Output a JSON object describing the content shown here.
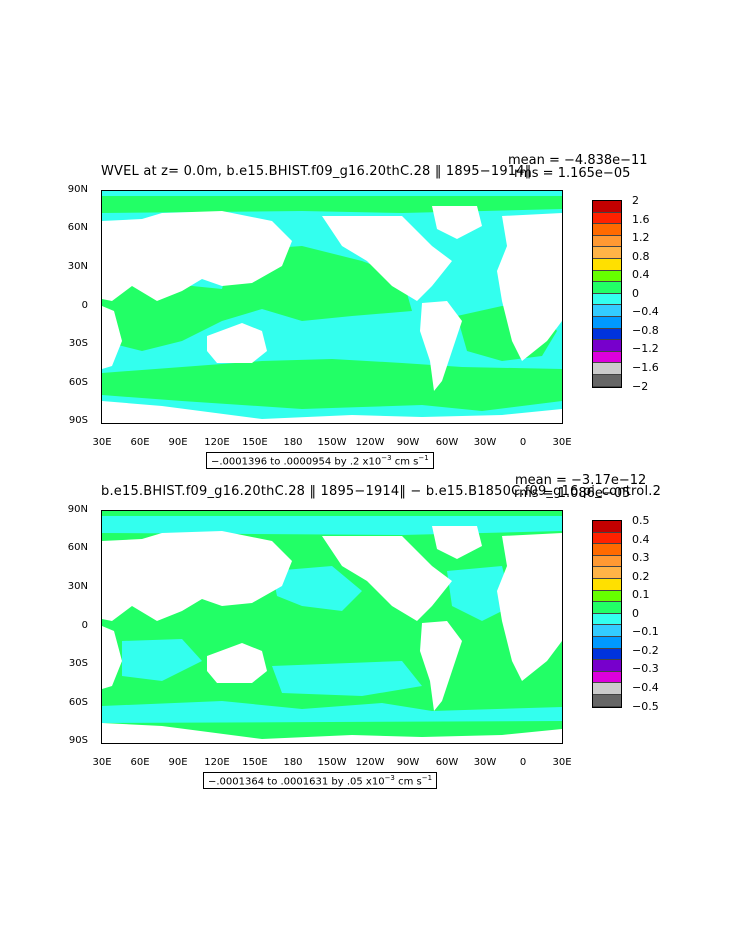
{
  "colors": {
    "land": "#ffffff",
    "green": "#22ff66",
    "cyan": "#33ffee"
  },
  "panel1": {
    "title_left": "WVEL at z=    0.0m, b.e15.BHIST.f09_g16.20thC.28 ‖ 1895−1914‖",
    "mean": "mean = −4.838e−11",
    "rms": "rms = 1.165e−05",
    "range_text": "−.0001396 to .0000954 by .2 x10",
    "range_exp": "−3",
    "range_unit": " cm s",
    "range_unit_exp": "−1",
    "colorbar": {
      "colors": [
        "#c40000",
        "#ff2200",
        "#ff6a00",
        "#ff9933",
        "#ffb347",
        "#ffe000",
        "#66ff00",
        "#22ff66",
        "#33ffee",
        "#33ccff",
        "#0099ff",
        "#0033dd",
        "#7700cc",
        "#dd00dd",
        "#cccccc",
        "#666666"
      ],
      "labels": [
        "2",
        "1.6",
        "1.2",
        "0.8",
        "0.4",
        "0",
        "−0.4",
        "−0.8",
        "−1.2",
        "−1.6",
        "−2"
      ]
    }
  },
  "panel2": {
    "title_left": "b.e15.BHIST.f09_g16.20thC.28 ‖ 1895−1914‖ − b.e15.B1850C.f09_g16.pi_control.2",
    "mean": "mean = −3.17e−12",
    "rms": "rms = 1.086e−05",
    "range_text": "−.0001364 to .0001631 by .05 x10",
    "range_exp": "−3",
    "range_unit": " cm s",
    "range_unit_exp": "−1",
    "colorbar": {
      "colors": [
        "#c40000",
        "#ff2200",
        "#ff6a00",
        "#ff9933",
        "#ffb347",
        "#ffe000",
        "#66ff00",
        "#22ff66",
        "#33ffee",
        "#33ccff",
        "#0099ff",
        "#0033dd",
        "#7700cc",
        "#dd00dd",
        "#cccccc",
        "#666666"
      ],
      "labels": [
        "0.5",
        "0.4",
        "0.3",
        "0.2",
        "0.1",
        "0",
        "−0.1",
        "−0.2",
        "−0.3",
        "−0.4",
        "−0.5"
      ]
    }
  },
  "axes": {
    "lat_labels": [
      "90N",
      "60N",
      "30N",
      "0",
      "30S",
      "60S",
      "90S"
    ],
    "lon_labels": [
      "30E",
      "60E",
      "90E",
      "120E",
      "150E",
      "180",
      "150W",
      "120W",
      "90W",
      "60W",
      "30W",
      "0",
      "30E"
    ]
  }
}
